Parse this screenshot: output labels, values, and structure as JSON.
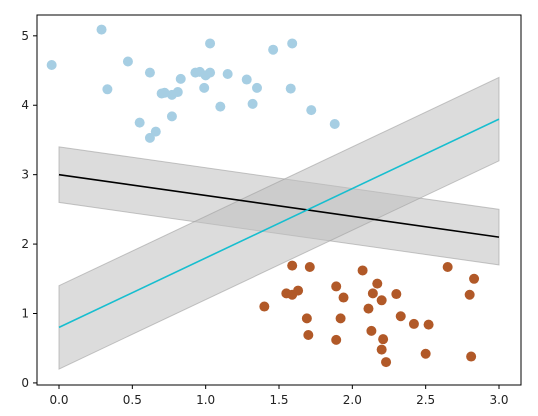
{
  "chart_data": {
    "type": "scatter",
    "title": "",
    "xlabel": "",
    "ylabel": "",
    "xlim": [
      -0.15,
      3.15
    ],
    "ylim": [
      -0.03,
      5.3
    ],
    "grid": false,
    "x_ticks": [
      0.0,
      0.5,
      1.0,
      1.5,
      2.0,
      2.5,
      3.0
    ],
    "x_tick_labels": [
      "0.0",
      "0.5",
      "1.0",
      "1.5",
      "2.0",
      "2.5",
      "3.0"
    ],
    "y_ticks": [
      0,
      1,
      2,
      3,
      4,
      5
    ],
    "y_tick_labels": [
      "0",
      "1",
      "2",
      "3",
      "4",
      "5"
    ],
    "series": [
      {
        "kind": "scatter",
        "color": "#a6cee3",
        "points": [
          [
            -0.05,
            4.58
          ],
          [
            0.29,
            5.09
          ],
          [
            0.33,
            4.23
          ],
          [
            0.47,
            4.63
          ],
          [
            0.55,
            3.75
          ],
          [
            0.62,
            4.47
          ],
          [
            0.62,
            3.53
          ],
          [
            0.66,
            3.62
          ],
          [
            0.7,
            4.17
          ],
          [
            0.72,
            4.18
          ],
          [
            0.77,
            4.15
          ],
          [
            0.77,
            3.84
          ],
          [
            0.81,
            4.19
          ],
          [
            0.83,
            4.38
          ],
          [
            0.93,
            4.47
          ],
          [
            0.96,
            4.48
          ],
          [
            0.99,
            4.25
          ],
          [
            1.0,
            4.43
          ],
          [
            1.03,
            4.89
          ],
          [
            1.03,
            4.47
          ],
          [
            1.1,
            3.98
          ],
          [
            1.15,
            4.45
          ],
          [
            1.28,
            4.37
          ],
          [
            1.32,
            4.02
          ],
          [
            1.35,
            4.25
          ],
          [
            1.46,
            4.8
          ],
          [
            1.58,
            4.24
          ],
          [
            1.59,
            4.89
          ],
          [
            1.72,
            3.93
          ],
          [
            1.88,
            3.73
          ]
        ]
      },
      {
        "kind": "scatter",
        "color": "#b15928",
        "points": [
          [
            1.4,
            1.1
          ],
          [
            1.55,
            1.29
          ],
          [
            1.59,
            1.69
          ],
          [
            1.59,
            1.27
          ],
          [
            1.63,
            1.33
          ],
          [
            1.69,
            0.93
          ],
          [
            1.7,
            0.69
          ],
          [
            1.71,
            1.67
          ],
          [
            1.89,
            0.62
          ],
          [
            1.89,
            1.39
          ],
          [
            1.92,
            0.93
          ],
          [
            1.94,
            1.23
          ],
          [
            2.07,
            1.62
          ],
          [
            2.11,
            1.07
          ],
          [
            2.13,
            0.75
          ],
          [
            2.14,
            1.29
          ],
          [
            2.17,
            1.43
          ],
          [
            2.2,
            1.19
          ],
          [
            2.2,
            0.48
          ],
          [
            2.21,
            0.63
          ],
          [
            2.23,
            0.3
          ],
          [
            2.3,
            1.28
          ],
          [
            2.33,
            0.96
          ],
          [
            2.42,
            0.85
          ],
          [
            2.5,
            0.42
          ],
          [
            2.52,
            0.84
          ],
          [
            2.65,
            1.67
          ],
          [
            2.8,
            1.27
          ],
          [
            2.81,
            0.38
          ],
          [
            2.83,
            1.5
          ]
        ]
      }
    ],
    "lines": [
      {
        "kind": "fit-line",
        "color": "#000000",
        "x": [
          0,
          3
        ],
        "y": [
          3.0,
          2.1
        ],
        "band_halfwidth": 0.4
      },
      {
        "kind": "fit-line",
        "color": "#17becf",
        "x": [
          0,
          3
        ],
        "y": [
          0.8,
          3.8
        ],
        "band_halfwidth": 0.6
      }
    ],
    "band_color": "#bfbfbf"
  }
}
